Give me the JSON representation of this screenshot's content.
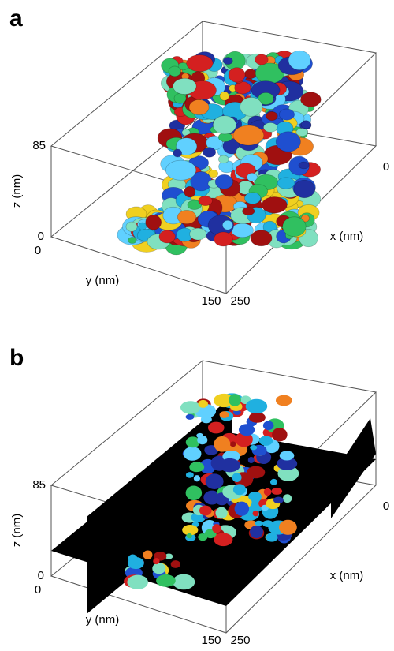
{
  "panels": [
    {
      "label": "a",
      "z_label": "z (nm)",
      "y_label": "y (nm)",
      "x_label": "x (nm)",
      "z_top": "85",
      "z_bottom": "0",
      "y_start": "0",
      "y_end": "150",
      "x_start": "0",
      "x_end": "250"
    },
    {
      "label": "b",
      "z_label": "z (nm)",
      "y_label": "y (nm)",
      "x_label": "x (nm)",
      "z_top": "85",
      "z_bottom": "0",
      "y_start": "0",
      "y_end": "150",
      "x_start": "0",
      "x_end": "250"
    }
  ]
}
